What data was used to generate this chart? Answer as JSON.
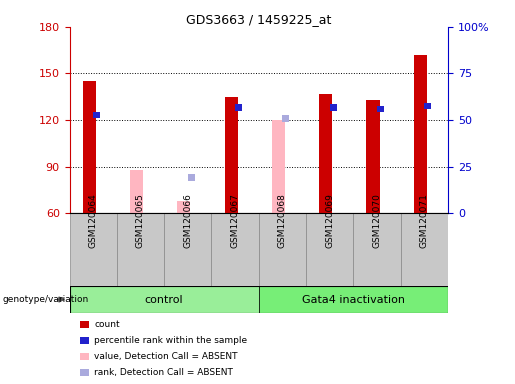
{
  "title": "GDS3663 / 1459225_at",
  "samples": [
    "GSM120064",
    "GSM120065",
    "GSM120066",
    "GSM120067",
    "GSM120068",
    "GSM120069",
    "GSM120070",
    "GSM120071"
  ],
  "red_values": [
    145,
    0,
    0,
    135,
    0,
    137,
    133,
    162
  ],
  "pink_values": [
    0,
    88,
    68,
    0,
    120,
    0,
    0,
    0
  ],
  "blue_values": [
    123,
    0,
    0,
    128,
    0,
    128,
    127,
    129
  ],
  "lightblue_values": [
    0,
    0,
    83,
    0,
    121,
    0,
    0,
    0
  ],
  "ymin": 60,
  "ymax": 180,
  "yticks": [
    60,
    90,
    120,
    150,
    180
  ],
  "y2labels": [
    "0",
    "25",
    "50",
    "75",
    "100%"
  ],
  "red_color": "#CC0000",
  "pink_color": "#FFB6C1",
  "blue_color": "#2222CC",
  "lightblue_color": "#AAAADD",
  "control_color": "#99EE99",
  "gata4_color": "#77EE77",
  "left_axis_color": "#CC0000",
  "right_axis_color": "#0000CC",
  "bar_width": 0.28,
  "blue_bar_width": 0.15,
  "blue_bar_height": 4
}
